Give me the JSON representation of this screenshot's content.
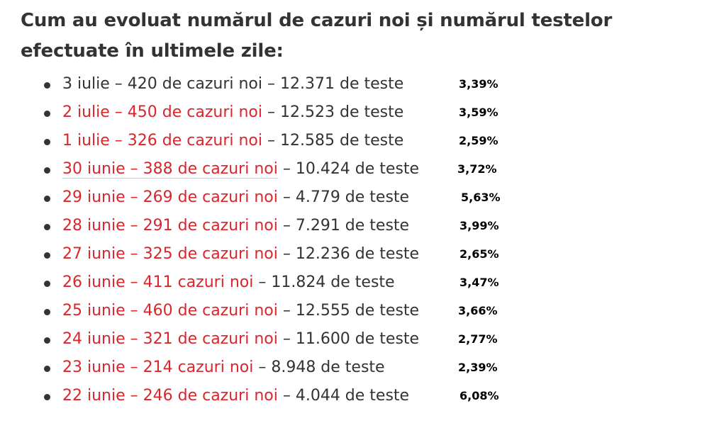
{
  "article": {
    "heading": "Cum au evoluat numărul de cazuri noi și numărul testelor efectuate în ultimele zile:"
  },
  "entries": [
    {
      "linked": "",
      "date_cases": "3 iulie – 420 de cazuri noi",
      "tests": " – 12.371 de teste",
      "percent": "3,39%"
    },
    {
      "linked": "2 iulie – 450 de cazuri noi",
      "date_cases": "",
      "tests": " – 12.523 de teste",
      "percent": "3,59%"
    },
    {
      "linked": "1 iulie – 326 de cazuri noi",
      "date_cases": "",
      "tests": " – 12.585 de teste",
      "percent": "2,59%"
    },
    {
      "linked": "30 iunie – 388 de cazuri noi",
      "date_cases": "",
      "tests": " – 10.424 de teste",
      "percent": "3,72%"
    },
    {
      "linked": "29 iunie – 269 de cazuri noi",
      "date_cases": "",
      "tests": " – 4.779 de teste",
      "percent": "5,63%"
    },
    {
      "linked": "28 iunie – 291 de cazuri noi",
      "date_cases": "",
      "tests": " – 7.291 de teste",
      "percent": "3,99%"
    },
    {
      "linked": "27 iunie – 325 de cazuri noi",
      "date_cases": "",
      "tests": " – 12.236 de teste",
      "percent": "2,65%"
    },
    {
      "linked": "26 iunie – 411 cazuri noi",
      "date_cases": "",
      "tests": " – 11.824 de teste",
      "percent": "3,47%"
    },
    {
      "linked": "25 iunie – 460 de cazuri noi",
      "date_cases": "",
      "tests": " – 12.555 de teste",
      "percent": "3,66%"
    },
    {
      "linked": "24 iunie – 321 de cazuri noi",
      "date_cases": "",
      "tests": " – 11.600 de teste",
      "percent": "2,77%"
    },
    {
      "linked": "23 iunie – 214 cazuri noi",
      "date_cases": "",
      "tests": " – 8.948 de teste",
      "percent": "2,39%"
    },
    {
      "linked": "22 iunie – 246 de cazuri noi",
      "date_cases": "",
      "tests": " – 4.044 de teste",
      "percent": "6,08%"
    }
  ],
  "colors": {
    "text": "#333333",
    "link": "#d8262c",
    "percent": "#000000"
  }
}
